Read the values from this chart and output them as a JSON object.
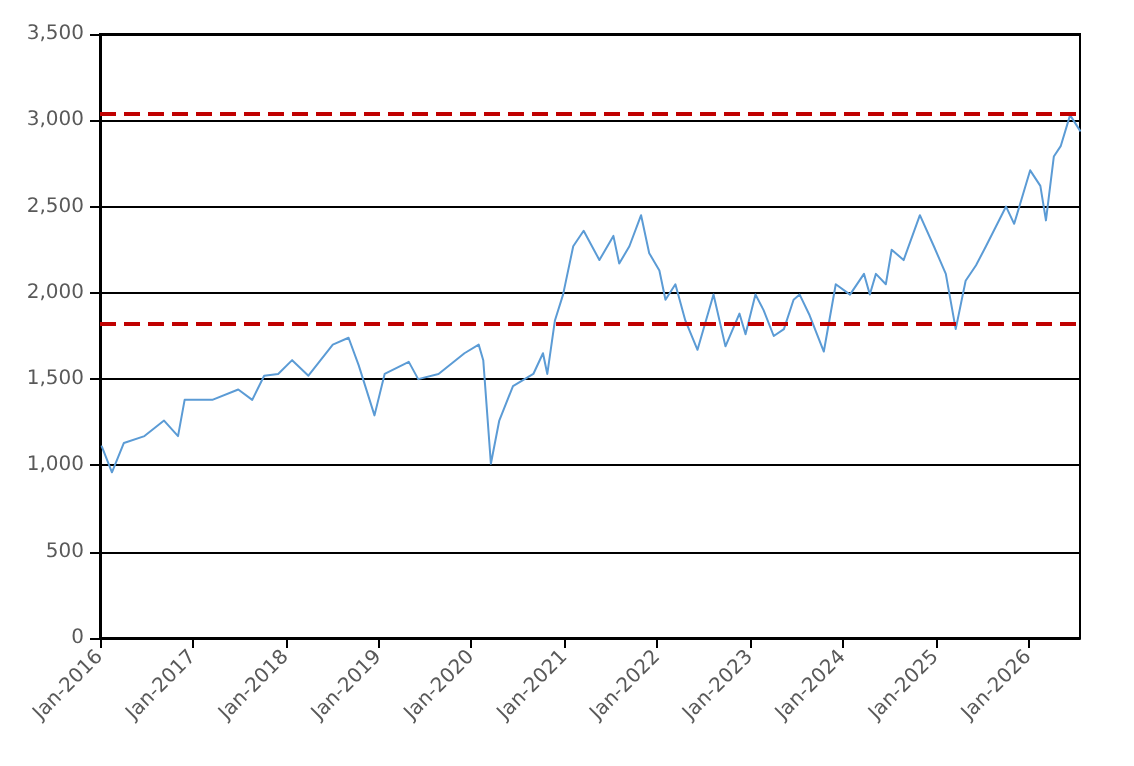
{
  "chart_data": {
    "type": "line",
    "x": [
      "2016-01-08",
      "2016-02-17",
      "2016-04-04",
      "2016-06-24",
      "2016-09-09",
      "2016-11-03",
      "2016-11-29",
      "2017-03-18",
      "2017-06-28",
      "2017-08-22",
      "2017-10-08",
      "2017-12-02",
      "2018-01-26",
      "2018-03-31",
      "2018-07-05",
      "2018-09-05",
      "2018-10-15",
      "2018-12-16",
      "2019-01-25",
      "2019-04-30",
      "2019-06-06",
      "2019-08-25",
      "2019-12-05",
      "2020-01-30",
      "2020-02-17",
      "2020-03-18",
      "2020-04-20",
      "2020-06-13",
      "2020-09-01",
      "2020-10-09",
      "2020-10-26",
      "2020-11-25",
      "2020-12-27",
      "2021-02-05",
      "2021-03-18",
      "2021-05-19",
      "2021-07-13",
      "2021-08-05",
      "2021-09-14",
      "2021-10-30",
      "2021-12-01",
      "2022-01-10",
      "2022-02-03",
      "2022-03-14",
      "2022-04-22",
      "2022-06-09",
      "2022-08-11",
      "2022-09-27",
      "2022-11-21",
      "2022-12-15",
      "2023-01-23",
      "2023-02-24",
      "2023-04-05",
      "2023-05-15",
      "2023-06-22",
      "2023-07-16",
      "2023-08-24",
      "2023-10-19",
      "2023-12-05",
      "2024-01-30",
      "2024-03-25",
      "2024-04-17",
      "2024-05-11",
      "2024-06-19",
      "2024-07-12",
      "2024-08-28",
      "2024-10-31",
      "2024-12-25",
      "2025-02-10",
      "2025-03-21",
      "2025-04-29",
      "2025-06-09",
      "2025-07-18",
      "2025-10-05",
      "2025-11-06",
      "2026-01-08",
      "2026-02-17",
      "2026-03-11",
      "2026-04-11",
      "2026-05-08",
      "2026-06-14",
      "2026-07-23"
    ],
    "series": [
      {
        "color": "#5b9bd5",
        "values": [
          1110,
          960,
          1130,
          1170,
          1260,
          1170,
          1380,
          1380,
          1440,
          1380,
          1520,
          1530,
          1610,
          1520,
          1700,
          1740,
          1580,
          1290,
          1530,
          1600,
          1500,
          1530,
          1650,
          1700,
          1610,
          1010,
          1260,
          1460,
          1530,
          1650,
          1530,
          1840,
          1990,
          2270,
          2360,
          2190,
          2330,
          2170,
          2270,
          2450,
          2230,
          2130,
          1960,
          2050,
          1840,
          1670,
          1990,
          1690,
          1880,
          1760,
          1990,
          1900,
          1750,
          1790,
          1960,
          1990,
          1870,
          1660,
          2050,
          1990,
          2110,
          1990,
          2110,
          2050,
          2250,
          2190,
          2450,
          2270,
          2110,
          1790,
          2070,
          2160,
          2270,
          2500,
          2400,
          2710,
          2620,
          2420,
          2790,
          2850,
          3030,
          2940
        ]
      }
    ],
    "xlim": [
      "2016-01-01",
      "2026-07-23"
    ],
    "xticks": [
      {
        "value": "2016-01",
        "label": "Jan-2016"
      },
      {
        "value": "2017-01",
        "label": "Jan-2017"
      },
      {
        "value": "2018-01",
        "label": "Jan-2018"
      },
      {
        "value": "2019-01",
        "label": "Jan-2019"
      },
      {
        "value": "2020-01",
        "label": "Jan-2020"
      },
      {
        "value": "2021-01",
        "label": "Jan-2021"
      },
      {
        "value": "2022-01",
        "label": "Jan-2022"
      },
      {
        "value": "2023-01",
        "label": "Jan-2023"
      },
      {
        "value": "2024-01",
        "label": "Jan-2024"
      },
      {
        "value": "2025-01",
        "label": "Jan-2025"
      },
      {
        "value": "2026-01",
        "label": "Jan-2026"
      }
    ],
    "ylim": [
      0,
      3500
    ],
    "yticks": [
      0,
      500,
      {
        "value": 1000,
        "label": "1,000"
      },
      {
        "value": 1500,
        "label": "1,500"
      },
      {
        "value": 2000,
        "label": "2,000"
      },
      {
        "value": 2500,
        "label": "2,500"
      },
      {
        "value": 3000,
        "label": "3,000"
      },
      {
        "value": 3500,
        "label": "3,500"
      }
    ],
    "ref_lines": [
      {
        "axis": "y",
        "value": 3040,
        "color": "#c00000",
        "line_style": "dashed"
      },
      {
        "axis": "y",
        "value": 1820,
        "color": "#c00000",
        "line_style": "dashed"
      }
    ],
    "grid": "y",
    "marker": "none",
    "line_style": "solid"
  }
}
